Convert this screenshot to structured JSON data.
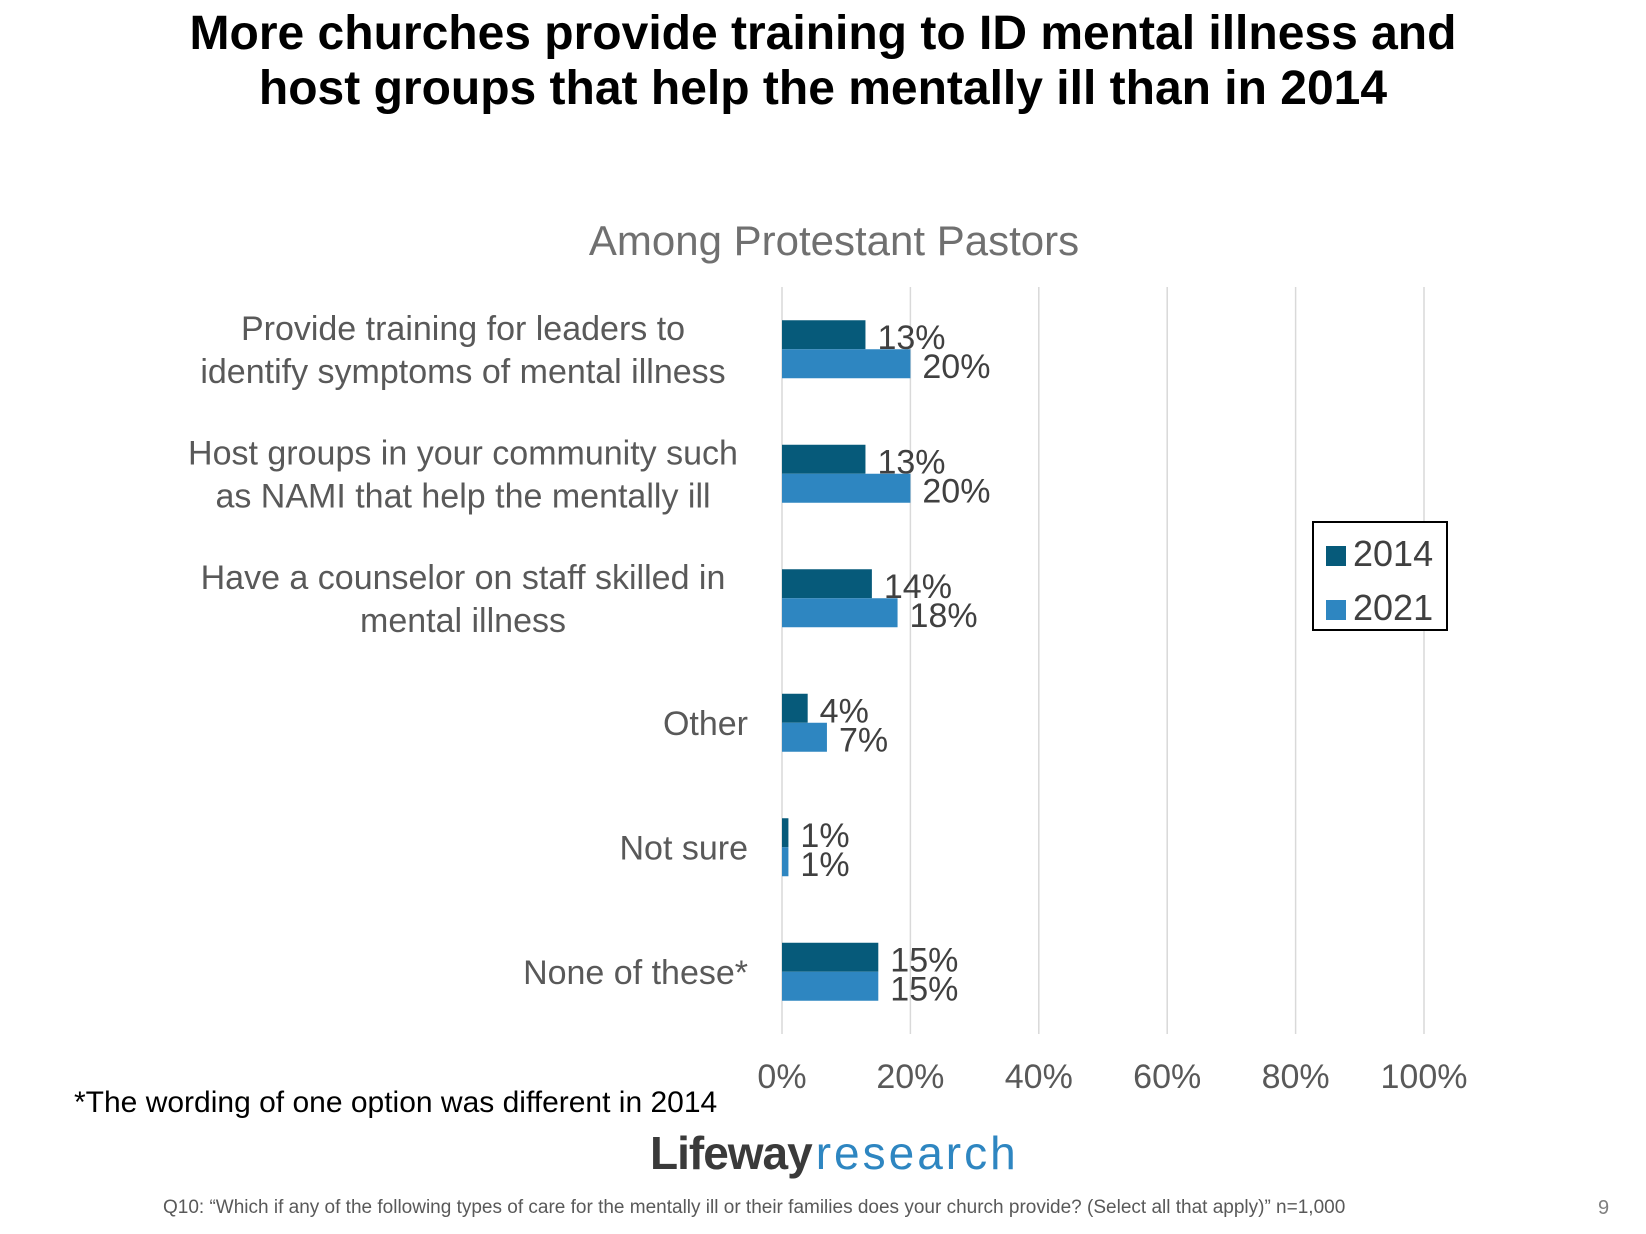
{
  "slide": {
    "headline_lines": [
      "More churches provide training to ID mental illness and",
      "host groups that help the mentally ill than in 2014"
    ],
    "footnote": "*The wording of one option was different in 2014",
    "logo_part1": "Lifeway",
    "logo_part2": "research",
    "question": "Q10: “Which if any of the following types of care for the mentally ill or their families does your church provide? (Select all that apply)” n=1,000",
    "page_number": "9"
  },
  "chart_data": {
    "type": "bar",
    "orientation": "horizontal",
    "title": "Among Protestant Pastors",
    "categories": [
      [
        "Provide training for leaders to",
        "identify symptoms of mental illness"
      ],
      [
        "Host groups in your community such",
        "as NAMI that help the mentally ill"
      ],
      [
        "Have a counselor on staff skilled in",
        "mental illness"
      ],
      [
        "Other"
      ],
      [
        "Not sure"
      ],
      [
        "None of these*"
      ]
    ],
    "series": [
      {
        "name": "2014",
        "color": "#065a7a",
        "values": [
          13,
          13,
          14,
          4,
          1,
          15
        ]
      },
      {
        "name": "2021",
        "color": "#2e86c1",
        "values": [
          20,
          20,
          18,
          7,
          1,
          15
        ]
      }
    ],
    "xlim": [
      0,
      100
    ],
    "xticks": [
      "0%",
      "20%",
      "40%",
      "60%",
      "80%",
      "100%"
    ],
    "value_suffix": "%",
    "grid": true,
    "legend_position": "right"
  }
}
